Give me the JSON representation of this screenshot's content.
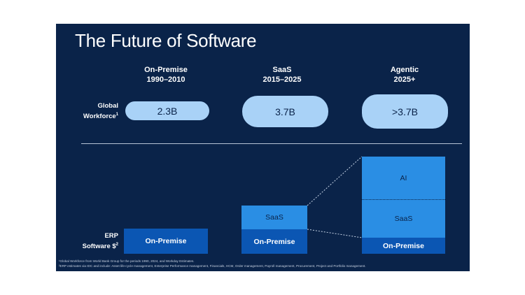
{
  "title": "The Future of Software",
  "eras": [
    {
      "name": "On-Premise",
      "years": "1990–2010"
    },
    {
      "name": "SaaS",
      "years": "2015–2025"
    },
    {
      "name": "Agentic",
      "years": "2025+"
    }
  ],
  "workforce": {
    "label_line1": "Global",
    "label_line2": "Workforce",
    "label_sup": "1",
    "values": [
      "2.3B",
      "3.7B",
      ">3.7B"
    ]
  },
  "erp": {
    "label_line1": "ERP",
    "label_line2": "Software $",
    "label_sup": "2"
  },
  "blocks": {
    "onprem_1": "On-Premise",
    "saas_2": "SaaS",
    "onprem_2": "On-Premise",
    "ai_3": "AI",
    "saas_3": "SaaS",
    "onprem_3": "On-Premise"
  },
  "footnotes": [
    "¹Global Workforce from World Bank Group for the periods 1990, 2024, and Workday Estimates.",
    "²ERP estimates via IDC and include: Asset life-cycle management, Enterprise Performance management, Financials, HCM, Order management, Payroll management, Procurement, Project and Portfolio management."
  ],
  "colors": {
    "background": "#0a2349",
    "pill": "#a9d2f7",
    "on_premise": "#0b56b3",
    "saas_ai": "#2a8ee4"
  }
}
